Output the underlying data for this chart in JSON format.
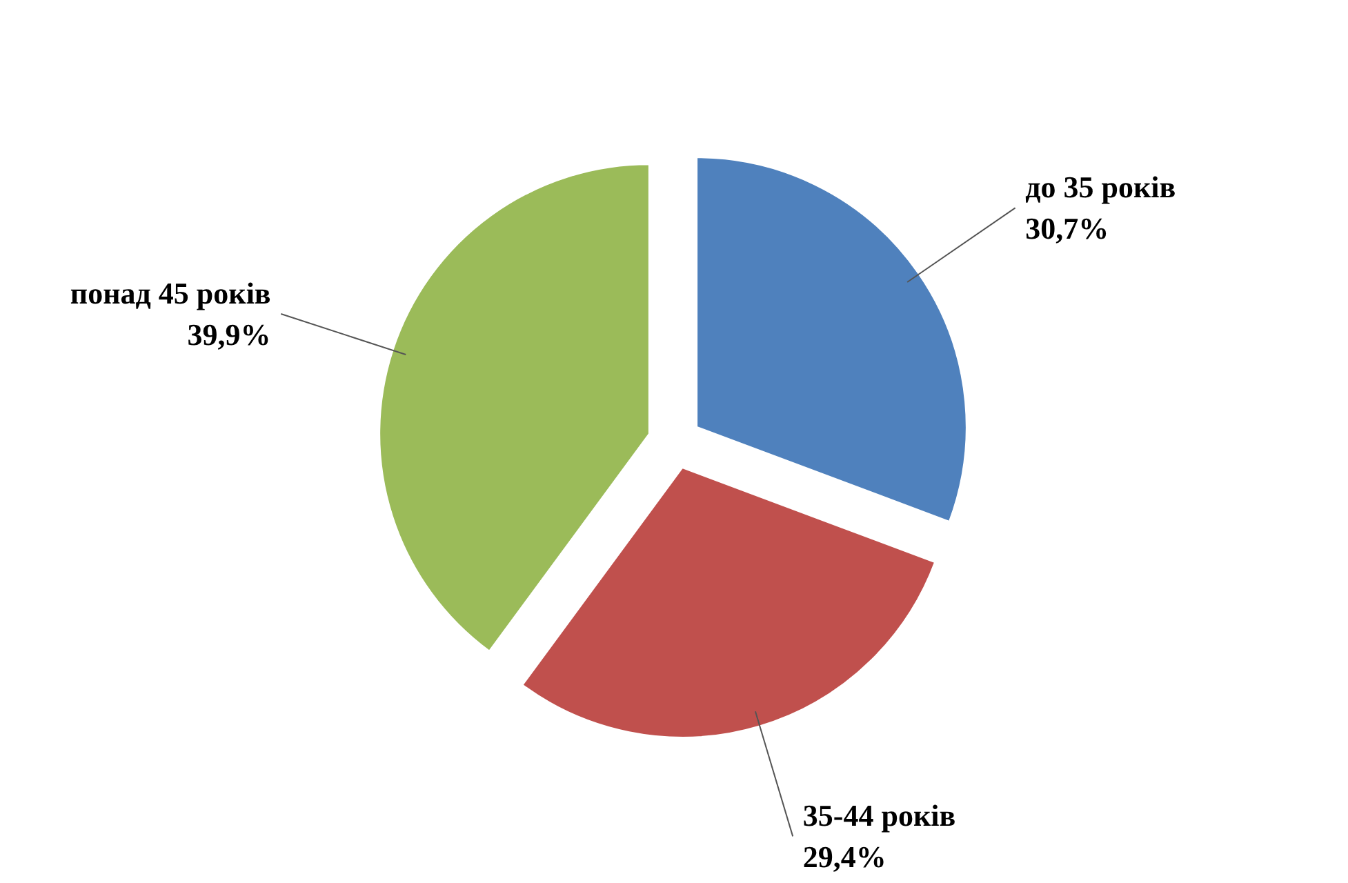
{
  "chart_data": {
    "type": "pie",
    "categories": [
      "до 35 років",
      "35-44 років",
      "понад 45 років"
    ],
    "values": [
      30.7,
      29.4,
      39.9
    ],
    "value_labels": [
      "30,7%",
      "29,4%",
      "39,9%"
    ],
    "colors": [
      "#4f81bd",
      "#c0504d",
      "#9bbb59"
    ]
  }
}
